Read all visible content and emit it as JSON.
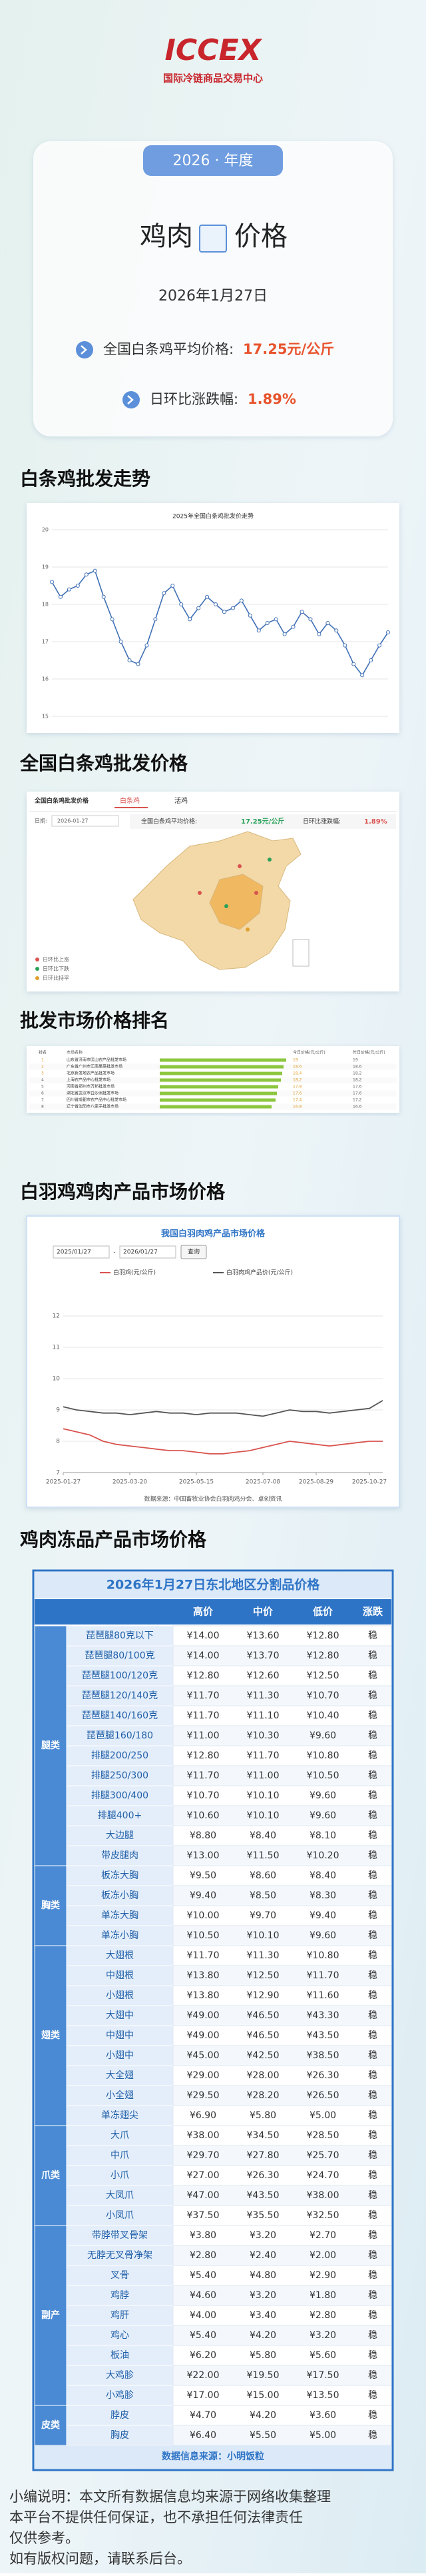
{
  "header": {
    "logo": "ICCEX",
    "org": "国际冷链商品交易中心"
  },
  "card": {
    "year_tag": "2026 · 年度",
    "title_left": "鸡肉",
    "title_right": "价格",
    "date": "2026年1月27日",
    "items": [
      {
        "label": "全国白条鸡平均价格:",
        "value": "17.25元/公斤"
      },
      {
        "label": "日环比涨跌幅:",
        "value": "1.89%"
      }
    ]
  },
  "headings": [
    "白条鸡批发走势",
    "全国白条鸡批发价格",
    "批发市场价格排名",
    "白羽鸡鸡肉产品市场价格",
    "鸡肉冻品产品市场价格"
  ],
  "trend_chart": {
    "type": "line",
    "title": "2025年全国白条鸡批发价走势",
    "color": "#3f6fb5",
    "values": [
      18.6,
      18.2,
      18.4,
      18.5,
      18.8,
      18.9,
      18.2,
      17.6,
      17.0,
      16.5,
      16.4,
      16.9,
      17.6,
      18.3,
      18.5,
      18.0,
      17.6,
      17.9,
      18.2,
      18.0,
      17.8,
      17.9,
      18.1,
      17.7,
      17.3,
      17.5,
      17.6,
      17.2,
      17.4,
      17.8,
      17.6,
      17.2,
      17.5,
      17.3,
      16.9,
      16.4,
      16.1,
      16.5,
      16.9,
      17.25
    ],
    "ylim": [
      15,
      20
    ],
    "yticks": [
      15,
      16,
      17,
      18,
      19,
      20
    ],
    "grid": true
  },
  "map_panel": {
    "title": "全国白条鸡批发价格",
    "tabs": [
      "白条鸡",
      "活鸡"
    ],
    "date_label": "日期:",
    "date": "2026-01-27",
    "avg_label": "全国白条鸡平均价格:",
    "avg_value": "17.25元/公斤",
    "change_label": "日环比涨跌幅:",
    "change_value": "1.89%",
    "legend": [
      "日环比上涨",
      "日环比下跌",
      "日环比持平"
    ]
  },
  "ranking": {
    "columns": [
      "排名",
      "市场名称",
      "今日价格(元/公斤)",
      "昨日价格(元/公斤)"
    ],
    "color": "#8cc63f",
    "rows": [
      {
        "rank": "1",
        "name": "山东省济南市匡山农产品批发市场",
        "today": 19.0,
        "yesterday": 19.0
      },
      {
        "rank": "2",
        "name": "广东省广州市江南果菜批发市场",
        "today": 18.6,
        "yesterday": 18.6
      },
      {
        "rank": "3",
        "name": "北京新发地农产品批发市场",
        "today": 18.4,
        "yesterday": 18.2
      },
      {
        "rank": "4",
        "name": "上海农产品中心批发市场",
        "today": 18.2,
        "yesterday": 18.2
      },
      {
        "rank": "5",
        "name": "河南省郑州市万邦批发市场",
        "today": 17.8,
        "yesterday": 17.6
      },
      {
        "rank": "6",
        "name": "湖北省武汉市白沙洲批发市场",
        "today": 17.6,
        "yesterday": 17.6
      },
      {
        "rank": "7",
        "name": "四川省成都市农产品中心批发市场",
        "today": 17.4,
        "yesterday": 17.2
      },
      {
        "rank": "8",
        "name": "辽宁省沈阳市八家子批发市场",
        "today": 16.8,
        "yesterday": 16.6
      }
    ]
  },
  "market_chart": {
    "type": "line",
    "title": "我国白羽肉鸡产品市场价格",
    "date_from": "2025/01/27",
    "date_sep": "-",
    "date_to": "2026/01/27",
    "button": "查询",
    "series": [
      {
        "name": "白羽鸡(元/公斤)",
        "color": "#d9534f",
        "values": [
          8.4,
          8.3,
          8.2,
          8.0,
          7.9,
          7.85,
          7.8,
          7.75,
          7.7,
          7.7,
          7.65,
          7.6,
          7.6,
          7.65,
          7.7,
          7.8,
          7.9,
          8.0,
          7.95,
          7.9,
          7.85,
          7.9,
          7.95,
          8.0,
          8.0
        ]
      },
      {
        "name": "白羽肉鸡产品价(元/公斤)",
        "color": "#555555",
        "values": [
          9.1,
          9.0,
          8.95,
          8.9,
          8.9,
          8.85,
          8.9,
          8.95,
          8.9,
          8.9,
          8.85,
          8.9,
          8.9,
          8.9,
          8.85,
          8.8,
          8.9,
          9.0,
          8.95,
          8.95,
          8.9,
          8.95,
          9.0,
          9.05,
          9.3
        ]
      }
    ],
    "ylim": [
      7,
      12
    ],
    "yticks": [
      7,
      8,
      9,
      10,
      11,
      12
    ],
    "xticks": [
      {
        "value": 0,
        "label": "2025-01-27"
      },
      {
        "value": 5,
        "label": "2025-03-20"
      },
      {
        "value": 10,
        "label": "2025-05-15"
      },
      {
        "value": 15,
        "label": "2025-07-08"
      },
      {
        "value": 19,
        "label": "2025-08-29"
      },
      {
        "value": 23,
        "label": "2025-10-27"
      }
    ],
    "xlim": [
      0,
      24
    ],
    "source": "数据来源：中国畜牧业协会白羽肉鸡分会、卓创资讯"
  },
  "table": {
    "title": "2026年1月27日东北地区分割品价格",
    "columns": [
      "品名",
      "高价",
      "中价",
      "低价",
      "涨跌"
    ],
    "groups": [
      {
        "name": "腿类",
        "items": [
          [
            "琵琶腿80克以下",
            "¥14.00",
            "¥13.60",
            "¥12.80",
            "稳"
          ],
          [
            "琵琶腿80/100克",
            "¥14.00",
            "¥13.70",
            "¥12.80",
            "稳"
          ],
          [
            "琵琶腿100/120克",
            "¥12.80",
            "¥12.60",
            "¥12.50",
            "稳"
          ],
          [
            "琵琶腿120/140克",
            "¥11.70",
            "¥11.30",
            "¥10.70",
            "稳"
          ],
          [
            "琵琶腿140/160克",
            "¥11.70",
            "¥11.10",
            "¥10.40",
            "稳"
          ],
          [
            "琵琶腿160/180",
            "¥11.00",
            "¥10.30",
            "¥9.60",
            "稳"
          ],
          [
            "排腿200/250",
            "¥12.80",
            "¥11.70",
            "¥10.80",
            "稳"
          ],
          [
            "排腿250/300",
            "¥11.70",
            "¥11.00",
            "¥10.50",
            "稳"
          ],
          [
            "排腿300/400",
            "¥10.70",
            "¥10.10",
            "¥9.60",
            "稳"
          ],
          [
            "排腿400+",
            "¥10.60",
            "¥10.10",
            "¥9.60",
            "稳"
          ],
          [
            "大边腿",
            "¥8.80",
            "¥8.40",
            "¥8.10",
            "稳"
          ],
          [
            "带皮腿肉",
            "¥13.00",
            "¥11.50",
            "¥10.20",
            "稳"
          ]
        ]
      },
      {
        "name": "胸类",
        "items": [
          [
            "板冻大胸",
            "¥9.50",
            "¥8.60",
            "¥8.40",
            "稳"
          ],
          [
            "板冻小胸",
            "¥9.40",
            "¥8.50",
            "¥8.30",
            "稳"
          ],
          [
            "单冻大胸",
            "¥10.00",
            "¥9.70",
            "¥9.40",
            "稳"
          ],
          [
            "单冻小胸",
            "¥10.50",
            "¥10.10",
            "¥9.60",
            "稳"
          ]
        ]
      },
      {
        "name": "翅类",
        "items": [
          [
            "大翅根",
            "¥11.70",
            "¥11.30",
            "¥10.80",
            "稳"
          ],
          [
            "中翅根",
            "¥13.80",
            "¥12.50",
            "¥11.70",
            "稳"
          ],
          [
            "小翅根",
            "¥13.80",
            "¥12.90",
            "¥11.60",
            "稳"
          ],
          [
            "大翅中",
            "¥49.00",
            "¥46.50",
            "¥43.30",
            "稳"
          ],
          [
            "中翅中",
            "¥49.00",
            "¥46.50",
            "¥43.50",
            "稳"
          ],
          [
            "小翅中",
            "¥45.00",
            "¥42.50",
            "¥38.50",
            "稳"
          ],
          [
            "大全翅",
            "¥29.00",
            "¥28.00",
            "¥26.30",
            "稳"
          ],
          [
            "小全翅",
            "¥29.50",
            "¥28.20",
            "¥26.50",
            "稳"
          ],
          [
            "单冻翅尖",
            "¥6.90",
            "¥5.80",
            "¥5.00",
            "稳"
          ]
        ]
      },
      {
        "name": "爪类",
        "items": [
          [
            "大爪",
            "¥38.00",
            "¥34.50",
            "¥28.50",
            "稳"
          ],
          [
            "中爪",
            "¥29.70",
            "¥27.80",
            "¥25.70",
            "稳"
          ],
          [
            "小爪",
            "¥27.00",
            "¥26.30",
            "¥24.70",
            "稳"
          ],
          [
            "大凤爪",
            "¥47.00",
            "¥43.50",
            "¥38.00",
            "稳"
          ],
          [
            "小凤爪",
            "¥37.50",
            "¥35.50",
            "¥32.50",
            "稳"
          ]
        ]
      },
      {
        "name": "副产",
        "items": [
          [
            "带脖带叉骨架",
            "¥3.80",
            "¥3.20",
            "¥2.70",
            "稳"
          ],
          [
            "无脖无叉骨净架",
            "¥2.80",
            "¥2.40",
            "¥2.00",
            "稳"
          ],
          [
            "叉骨",
            "¥5.40",
            "¥4.80",
            "¥2.90",
            "稳"
          ],
          [
            "鸡脖",
            "¥4.60",
            "¥3.20",
            "¥1.80",
            "稳"
          ],
          [
            "鸡肝",
            "¥4.00",
            "¥3.40",
            "¥2.80",
            "稳"
          ],
          [
            "鸡心",
            "¥5.40",
            "¥4.20",
            "¥3.20",
            "稳"
          ],
          [
            "板油",
            "¥6.20",
            "¥5.80",
            "¥5.60",
            "稳"
          ],
          [
            "大鸡胗",
            "¥22.00",
            "¥19.50",
            "¥17.50",
            "稳"
          ],
          [
            "小鸡胗",
            "¥17.00",
            "¥15.00",
            "¥13.50",
            "稳"
          ]
        ]
      },
      {
        "name": "皮类",
        "items": [
          [
            "脖皮",
            "¥4.70",
            "¥4.20",
            "¥3.60",
            "稳"
          ],
          [
            "胸皮",
            "¥6.40",
            "¥5.50",
            "¥5.00",
            "稳"
          ]
        ]
      }
    ],
    "source": "数据信息来源：小明饭粒"
  },
  "footer": [
    "小编说明：本文所有数据信息均来源于网络收集整理",
    "本平台不提供任何保证，也不承担任何法律责任",
    "仅供参考。",
    "如有版权问题，请联系后台。"
  ]
}
